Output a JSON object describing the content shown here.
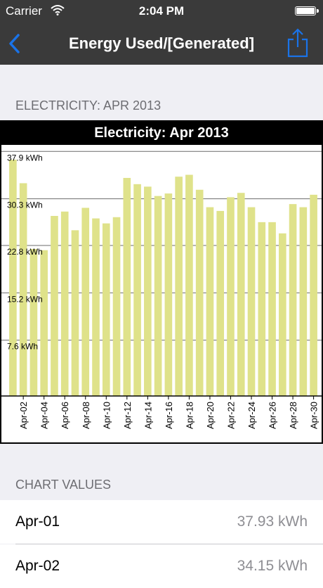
{
  "status_bar": {
    "carrier": "Carrier",
    "time": "2:04 PM"
  },
  "nav": {
    "title": "Energy Used/[Generated]"
  },
  "sections": {
    "electricity_header": "ELECTRICITY: APR 2013",
    "chart_values_header": "CHART VALUES"
  },
  "colors": {
    "bar": "#dfe28a",
    "nav_background": "#3a3a3a",
    "accent": "#1a73e8"
  },
  "chart_data": {
    "type": "bar",
    "title": "Electricity: Apr 2013",
    "categories": [
      "Apr-01",
      "Apr-02",
      "Apr-03",
      "Apr-04",
      "Apr-05",
      "Apr-06",
      "Apr-07",
      "Apr-08",
      "Apr-09",
      "Apr-10",
      "Apr-11",
      "Apr-12",
      "Apr-13",
      "Apr-14",
      "Apr-15",
      "Apr-16",
      "Apr-17",
      "Apr-18",
      "Apr-19",
      "Apr-20",
      "Apr-21",
      "Apr-22",
      "Apr-23",
      "Apr-24",
      "Apr-25",
      "Apr-26",
      "Apr-27",
      "Apr-28",
      "Apr-29",
      "Apr-30"
    ],
    "tick_labels": [
      "Apr-02",
      "Apr-04",
      "Apr-06",
      "Apr-08",
      "Apr-10",
      "Apr-12",
      "Apr-14",
      "Apr-16",
      "Apr-18",
      "Apr-20",
      "Apr-22",
      "Apr-24",
      "Apr-26",
      "Apr-28",
      "Apr-30"
    ],
    "values": [
      37.93,
      34.15,
      23.6,
      23.4,
      28.9,
      29.6,
      26.6,
      30.2,
      28.5,
      27.7,
      28.7,
      35.0,
      34.0,
      33.6,
      32.1,
      32.5,
      35.2,
      35.5,
      33.1,
      30.3,
      29.7,
      31.9,
      32.6,
      30.3,
      27.9,
      27.9,
      26.1,
      30.8,
      30.3,
      32.3
    ],
    "ytick_labels": [
      "37.9 kWh",
      "30.3 kWh",
      "22.8 kWh",
      "15.2 kWh",
      "7.6 kWh"
    ],
    "ytick_values": [
      37.9,
      30.3,
      22.8,
      15.2,
      7.6
    ],
    "ylim": [
      0,
      37.93
    ],
    "grid": true,
    "xlabel": "",
    "ylabel": ""
  },
  "chart_values": [
    {
      "label": "Apr-01",
      "value": "37.93 kWh"
    },
    {
      "label": "Apr-02",
      "value": "34.15 kWh"
    }
  ]
}
